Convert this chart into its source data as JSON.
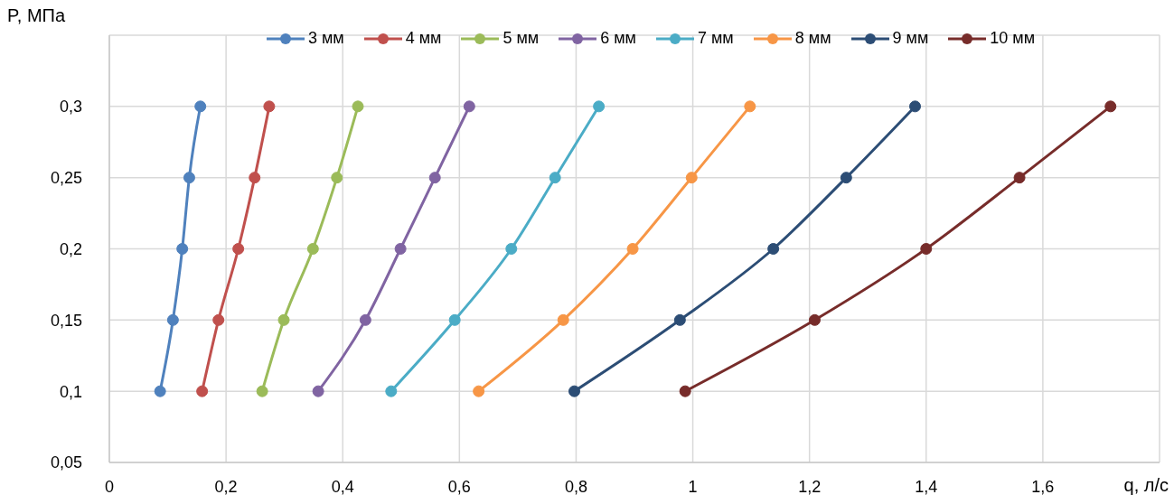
{
  "chart_data": {
    "type": "line",
    "xlabel": "q, л/с",
    "ylabel": "P, МПа",
    "xlim": [
      0,
      1.8
    ],
    "xticks": [
      0,
      {
        "value": 0.2,
        "label": "0,2"
      },
      {
        "value": 0.4,
        "label": "0,4"
      },
      {
        "value": 0.6,
        "label": "0,6"
      },
      {
        "value": 0.8,
        "label": "0,8"
      },
      1,
      {
        "value": 1.2,
        "label": "1,2"
      },
      {
        "value": 1.4,
        "label": "1,4"
      },
      {
        "value": 1.6,
        "label": "1,6"
      },
      {
        "value": 1.8,
        "label": null
      }
    ],
    "ylim": [
      0.05,
      0.35
    ],
    "yticks": [
      {
        "value": 0.05,
        "label": "0,05"
      },
      {
        "value": 0.1,
        "label": "0,1"
      },
      {
        "value": 0.15,
        "label": "0,15"
      },
      {
        "value": 0.2,
        "label": "0,2"
      },
      {
        "value": 0.25,
        "label": "0,25"
      },
      {
        "value": 0.3,
        "label": "0,3"
      },
      {
        "value": 0.35,
        "label": null
      }
    ],
    "grid": true,
    "legend": "top",
    "marker": "circle",
    "line_style": "solid",
    "series": [
      {
        "name": "3 мм",
        "color": "#4f81bd",
        "x": [
          0.087,
          0.109,
          0.125,
          0.137,
          0.156
        ],
        "values": [
          0.1,
          0.15,
          0.2,
          0.25,
          0.3
        ]
      },
      {
        "name": "4 мм",
        "color": "#c0504d",
        "x": [
          0.159,
          0.187,
          0.221,
          0.249,
          0.274
        ],
        "values": [
          0.1,
          0.15,
          0.2,
          0.25,
          0.3
        ]
      },
      {
        "name": "5 мм",
        "color": "#9bbb59",
        "x": [
          0.262,
          0.299,
          0.349,
          0.39,
          0.426
        ],
        "values": [
          0.1,
          0.15,
          0.2,
          0.25,
          0.3
        ]
      },
      {
        "name": "6 мм",
        "color": "#8064a2",
        "x": [
          0.358,
          0.439,
          0.499,
          0.558,
          0.617
        ],
        "values": [
          0.1,
          0.15,
          0.2,
          0.25,
          0.3
        ]
      },
      {
        "name": "7 мм",
        "color": "#4bacc6",
        "x": [
          0.483,
          0.592,
          0.689,
          0.764,
          0.839
        ],
        "values": [
          0.1,
          0.15,
          0.2,
          0.25,
          0.3
        ]
      },
      {
        "name": "8 мм",
        "color": "#f79646",
        "x": [
          0.633,
          0.778,
          0.897,
          0.998,
          1.098
        ],
        "values": [
          0.1,
          0.15,
          0.2,
          0.25,
          0.3
        ]
      },
      {
        "name": "9 мм",
        "color": "#2c4d75",
        "x": [
          0.797,
          0.978,
          1.138,
          1.263,
          1.381
        ],
        "values": [
          0.1,
          0.15,
          0.2,
          0.25,
          0.3
        ]
      },
      {
        "name": "10 мм",
        "color": "#772c2a",
        "x": [
          0.987,
          1.209,
          1.4,
          1.56,
          1.716
        ],
        "values": [
          0.1,
          0.15,
          0.2,
          0.25,
          0.3
        ]
      }
    ]
  }
}
